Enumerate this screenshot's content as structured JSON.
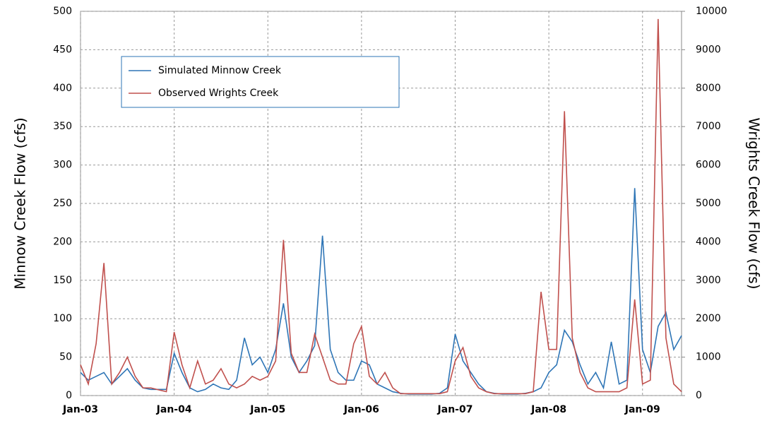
{
  "chart_data": {
    "type": "line",
    "y_label": "Minnow Creek Flow (cfs)",
    "y2_label": "Wrights Creek Flow (cfs)",
    "x": [
      "2003-01",
      "2003-02",
      "2003-03",
      "2003-04",
      "2003-05",
      "2003-06",
      "2003-07",
      "2003-08",
      "2003-09",
      "2003-10",
      "2003-11",
      "2003-12",
      "2004-01",
      "2004-02",
      "2004-03",
      "2004-04",
      "2004-05",
      "2004-06",
      "2004-07",
      "2004-08",
      "2004-09",
      "2004-10",
      "2004-11",
      "2004-12",
      "2005-01",
      "2005-02",
      "2005-03",
      "2005-04",
      "2005-05",
      "2005-06",
      "2005-07",
      "2005-08",
      "2005-09",
      "2005-10",
      "2005-11",
      "2005-12",
      "2006-01",
      "2006-02",
      "2006-03",
      "2006-04",
      "2006-05",
      "2006-06",
      "2006-07",
      "2006-08",
      "2006-09",
      "2006-10",
      "2006-11",
      "2006-12",
      "2007-01",
      "2007-02",
      "2007-03",
      "2007-04",
      "2007-05",
      "2007-06",
      "2007-07",
      "2007-08",
      "2007-09",
      "2007-10",
      "2007-11",
      "2007-12",
      "2008-01",
      "2008-02",
      "2008-03",
      "2008-04",
      "2008-05",
      "2008-06",
      "2008-07",
      "2008-08",
      "2008-09",
      "2008-10",
      "2008-11",
      "2008-12",
      "2009-01",
      "2009-02",
      "2009-03",
      "2009-04",
      "2009-05",
      "2009-06"
    ],
    "series": [
      {
        "name": "Simulated Minnow Creek",
        "color": "#2e75b6",
        "axis": "y",
        "values": [
          30,
          20,
          25,
          30,
          15,
          25,
          35,
          20,
          10,
          8,
          8,
          8,
          55,
          30,
          10,
          5,
          8,
          15,
          10,
          8,
          20,
          75,
          40,
          50,
          30,
          60,
          120,
          50,
          30,
          45,
          65,
          208,
          60,
          30,
          20,
          20,
          45,
          40,
          15,
          10,
          5,
          3,
          2,
          2,
          2,
          2,
          3,
          10,
          80,
          45,
          30,
          15,
          5,
          3,
          2,
          2,
          2,
          3,
          5,
          10,
          30,
          40,
          85,
          70,
          40,
          15,
          30,
          10,
          70,
          15,
          20,
          270,
          60,
          30,
          90,
          108,
          60,
          78
        ]
      },
      {
        "name": "Observed Wrights Creek",
        "color": "#c0504d",
        "axis": "y2",
        "values": [
          800,
          300,
          1350,
          3450,
          300,
          600,
          1000,
          500,
          200,
          200,
          150,
          100,
          1650,
          800,
          200,
          900,
          300,
          400,
          700,
          300,
          200,
          300,
          500,
          400,
          500,
          900,
          4050,
          1100,
          600,
          600,
          1600,
          1000,
          400,
          300,
          300,
          1350,
          1800,
          500,
          300,
          600,
          200,
          50,
          50,
          50,
          50,
          50,
          50,
          100,
          900,
          1250,
          500,
          200,
          100,
          50,
          50,
          50,
          50,
          50,
          100,
          2700,
          1200,
          1200,
          7400,
          1500,
          600,
          200,
          100,
          100,
          100,
          100,
          200,
          2500,
          300,
          400,
          9800,
          1500,
          300,
          100
        ]
      }
    ],
    "xlim": [
      "2003-01",
      "2009-06"
    ],
    "xticks": [
      {
        "value": "2003-01",
        "label": "Jan-03"
      },
      {
        "value": "2004-01",
        "label": "Jan-04"
      },
      {
        "value": "2005-01",
        "label": "Jan-05"
      },
      {
        "value": "2006-01",
        "label": "Jan-06"
      },
      {
        "value": "2007-01",
        "label": "Jan-07"
      },
      {
        "value": "2008-01",
        "label": "Jan-08"
      },
      {
        "value": "2009-01",
        "label": "Jan-09"
      }
    ],
    "ylim": [
      0,
      500
    ],
    "yticks": [
      0,
      50,
      100,
      150,
      200,
      250,
      300,
      350,
      400,
      450,
      500
    ],
    "y2lim": [
      0,
      10000
    ],
    "y2ticks": [
      0,
      1000,
      2000,
      3000,
      4000,
      5000,
      6000,
      7000,
      8000,
      9000,
      10000
    ],
    "grid": true
  }
}
